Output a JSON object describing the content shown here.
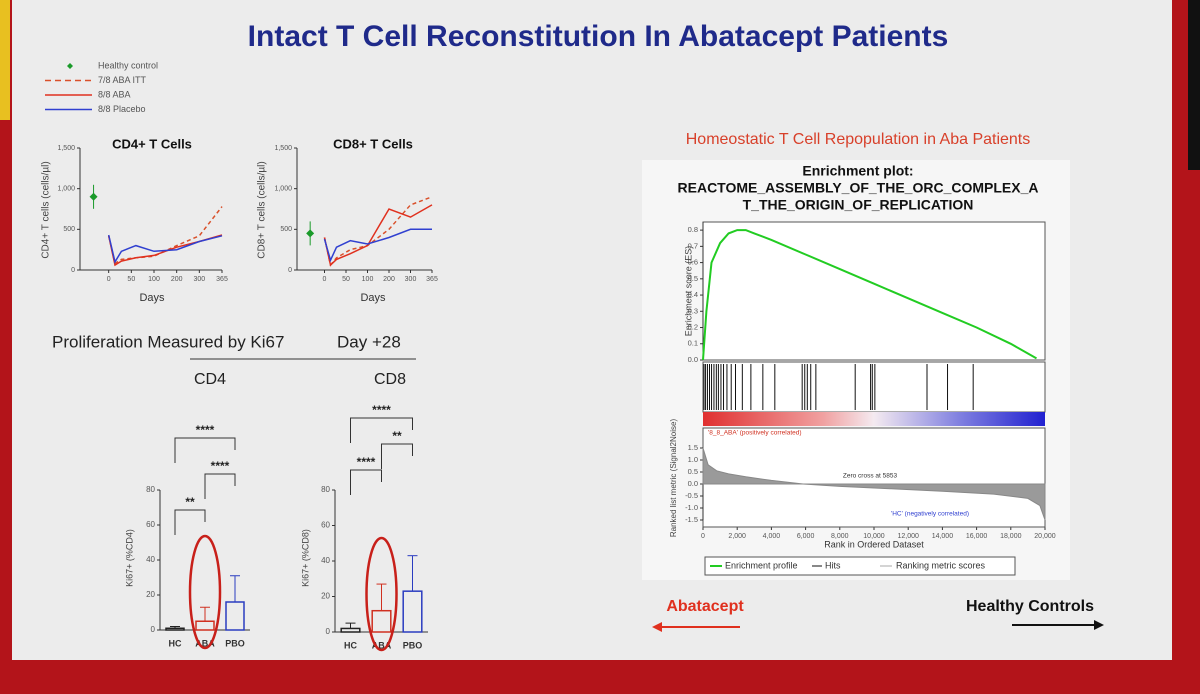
{
  "title": "Intact T Cell Reconstitution In Abatacept Patients",
  "legend": [
    {
      "name": "Healthy control",
      "color": "#1a9a2a",
      "style": "marker"
    },
    {
      "name": "7/8 ABA ITT",
      "color": "#d9502a",
      "style": "dashed"
    },
    {
      "name": "8/8 ABA",
      "color": "#e0301e",
      "style": "solid"
    },
    {
      "name": "8/8 Placebo",
      "color": "#3040d0",
      "style": "solid"
    }
  ],
  "proliferation": {
    "heading": "Proliferation Measured by Ki67",
    "day": "Day +28",
    "groups": [
      "CD4",
      "CD8"
    ]
  },
  "gsea_heading": "Homeostatic T Cell Repopulation in Aba Patients",
  "arrows": {
    "left": "Abatacept",
    "right": "Healthy Controls"
  },
  "chart_data": [
    {
      "type": "line",
      "title": "CD4+ T Cells",
      "xlabel": "Days",
      "ylabel": "CD4+ T cells (cells/µl)",
      "xlim": [
        -30,
        365
      ],
      "xticks": [
        0,
        50,
        100,
        200,
        300,
        365
      ],
      "ylim": [
        0,
        1500
      ],
      "yticks": [
        0,
        500,
        {
          "value": 1000,
          "label": "1,000"
        },
        {
          "value": 1500,
          "label": "1,500"
        }
      ],
      "series": [
        {
          "color": "#1a9a2a",
          "x": [
            -20
          ],
          "values": [
            900
          ]
        },
        {
          "color": "#d9502a",
          "dash": true,
          "x": [
            0,
            14,
            28,
            60,
            100,
            200,
            300,
            365
          ],
          "values": [
            420,
            80,
            130,
            150,
            170,
            300,
            420,
            780
          ]
        },
        {
          "color": "#e0301e",
          "x": [
            0,
            14,
            28,
            60,
            100,
            200,
            300,
            365
          ],
          "values": [
            420,
            60,
            110,
            150,
            180,
            280,
            350,
            430
          ]
        },
        {
          "color": "#3040d0",
          "x": [
            0,
            14,
            28,
            60,
            100,
            200,
            300,
            365
          ],
          "values": [
            430,
            100,
            230,
            300,
            230,
            250,
            350,
            420
          ]
        }
      ]
    },
    {
      "type": "line",
      "title": "CD8+ T Cells",
      "xlabel": "Days",
      "ylabel": "CD8+ T cells (cells/µl)",
      "xlim": [
        -30,
        365
      ],
      "xticks": [
        0,
        50,
        100,
        200,
        300,
        365
      ],
      "ylim": [
        0,
        1500
      ],
      "yticks": [
        0,
        500,
        {
          "value": 1000,
          "label": "1,000"
        },
        {
          "value": 1500,
          "label": "1,500"
        }
      ],
      "series": [
        {
          "color": "#1a9a2a",
          "x": [
            -20
          ],
          "values": [
            450
          ]
        },
        {
          "color": "#d9502a",
          "dash": true,
          "x": [
            0,
            14,
            28,
            60,
            100,
            200,
            300,
            365
          ],
          "values": [
            400,
            60,
            150,
            250,
            300,
            500,
            800,
            900
          ]
        },
        {
          "color": "#e0301e",
          "x": [
            0,
            14,
            28,
            60,
            100,
            200,
            300,
            365
          ],
          "values": [
            400,
            60,
            130,
            200,
            300,
            750,
            650,
            800
          ]
        },
        {
          "color": "#3040d0",
          "x": [
            0,
            14,
            28,
            60,
            100,
            200,
            300,
            365
          ],
          "values": [
            380,
            120,
            280,
            360,
            320,
            400,
            500,
            500
          ]
        }
      ]
    },
    {
      "type": "bar",
      "ylabel": "Ki67+ (%CD4)",
      "categories": [
        "HC",
        "ABA",
        "PBO"
      ],
      "values": [
        1,
        5,
        16
      ],
      "errors": [
        1,
        8,
        15
      ],
      "colors": [
        "#222222",
        "#d03020",
        "#2a3cc0"
      ],
      "ylim": [
        0,
        80
      ],
      "yticks": [
        0,
        20,
        40,
        60,
        80
      ],
      "brackets": [
        {
          "from": 0,
          "to": 1,
          "label": "**"
        },
        {
          "from": 1,
          "to": 2,
          "label": "****"
        },
        {
          "from": 0,
          "to": 2,
          "label": "****"
        }
      ]
    },
    {
      "type": "bar",
      "ylabel": "Ki67+ (%CD8)",
      "categories": [
        "HC",
        "ABA",
        "PBO"
      ],
      "values": [
        2,
        12,
        23
      ],
      "errors": [
        3,
        15,
        20
      ],
      "colors": [
        "#222222",
        "#d03020",
        "#2a3cc0"
      ],
      "ylim": [
        0,
        80
      ],
      "yticks": [
        0,
        20,
        40,
        60,
        80
      ],
      "brackets": [
        {
          "from": 0,
          "to": 1,
          "label": "****"
        },
        {
          "from": 1,
          "to": 2,
          "label": "**"
        },
        {
          "from": 0,
          "to": 2,
          "label": "****"
        }
      ]
    },
    {
      "type": "line",
      "title": [
        "Enrichment plot:",
        "REACTOME_ASSEMBLY_OF_THE_ORC_COMPLEX_A",
        "T_THE_ORIGIN_OF_REPLICATION"
      ],
      "xlabel": "Rank in Ordered Dataset",
      "ylabel": "Enrichment score (ES)",
      "xlim": [
        0,
        20000
      ],
      "xticks": [
        0,
        {
          "value": 2000,
          "label": "2,000"
        },
        {
          "value": 4000,
          "label": "4,000"
        },
        {
          "value": 6000,
          "label": "6,000"
        },
        {
          "value": 8000,
          "label": "8,000"
        },
        {
          "value": 10000,
          "label": "10,000"
        },
        {
          "value": 12000,
          "label": "12,000"
        },
        {
          "value": 14000,
          "label": "14,000"
        },
        {
          "value": 16000,
          "label": "16,000"
        },
        {
          "value": 18000,
          "label": "18,000"
        },
        {
          "value": 20000,
          "label": "20,000"
        }
      ],
      "ylim": [
        0,
        0.85
      ],
      "yticks": [
        {
          "value": 0,
          "label": "0.0"
        },
        0.1,
        0.2,
        0.3,
        0.4,
        0.5,
        0.6,
        0.7,
        0.8
      ],
      "series": [
        {
          "name": "Enrichment profile",
          "color": "#22cc22",
          "x": [
            0,
            200,
            500,
            1000,
            1500,
            2000,
            2500,
            3000,
            4000,
            6000,
            8000,
            10000,
            12000,
            14000,
            16000,
            18000,
            19500
          ],
          "values": [
            0,
            0.3,
            0.6,
            0.72,
            0.78,
            0.8,
            0.8,
            0.78,
            0.74,
            0.65,
            0.56,
            0.47,
            0.38,
            0.29,
            0.2,
            0.1,
            0.01
          ]
        }
      ],
      "hits": {
        "name": "Hits",
        "x": [
          60,
          150,
          260,
          380,
          500,
          640,
          780,
          900,
          1050,
          1200,
          1400,
          1650,
          1900,
          2300,
          2800,
          3500,
          4200,
          5800,
          5950,
          6100,
          6300,
          6600,
          8900,
          9800,
          9900,
          10050,
          13100,
          14300,
          15800
        ]
      },
      "metric": {
        "name": "Ranking metric scores",
        "ylabel": "Ranked list metric (Signal2Noise)",
        "ylim": [
          -1.5,
          1.5
        ],
        "yticks": [
          -1.5,
          {
            "value": -1,
            "label": "-1.0"
          },
          -0.5,
          {
            "value": 0,
            "label": "0.0"
          },
          0.5,
          {
            "value": 1,
            "label": "1.0"
          },
          1.5
        ],
        "x": [
          0,
          300,
          800,
          1500,
          2500,
          4000,
          5853,
          8000,
          11000,
          14000,
          17000,
          19000,
          19700,
          20000
        ],
        "values": [
          1.5,
          0.8,
          0.55,
          0.42,
          0.3,
          0.15,
          0,
          -0.1,
          -0.2,
          -0.3,
          -0.42,
          -0.6,
          -0.9,
          -1.5
        ],
        "annotations": [
          "'8_8_ABA' (positively correlated)",
          "Zero cross at 5853",
          "'HC' (negatively correlated)"
        ]
      }
    }
  ]
}
